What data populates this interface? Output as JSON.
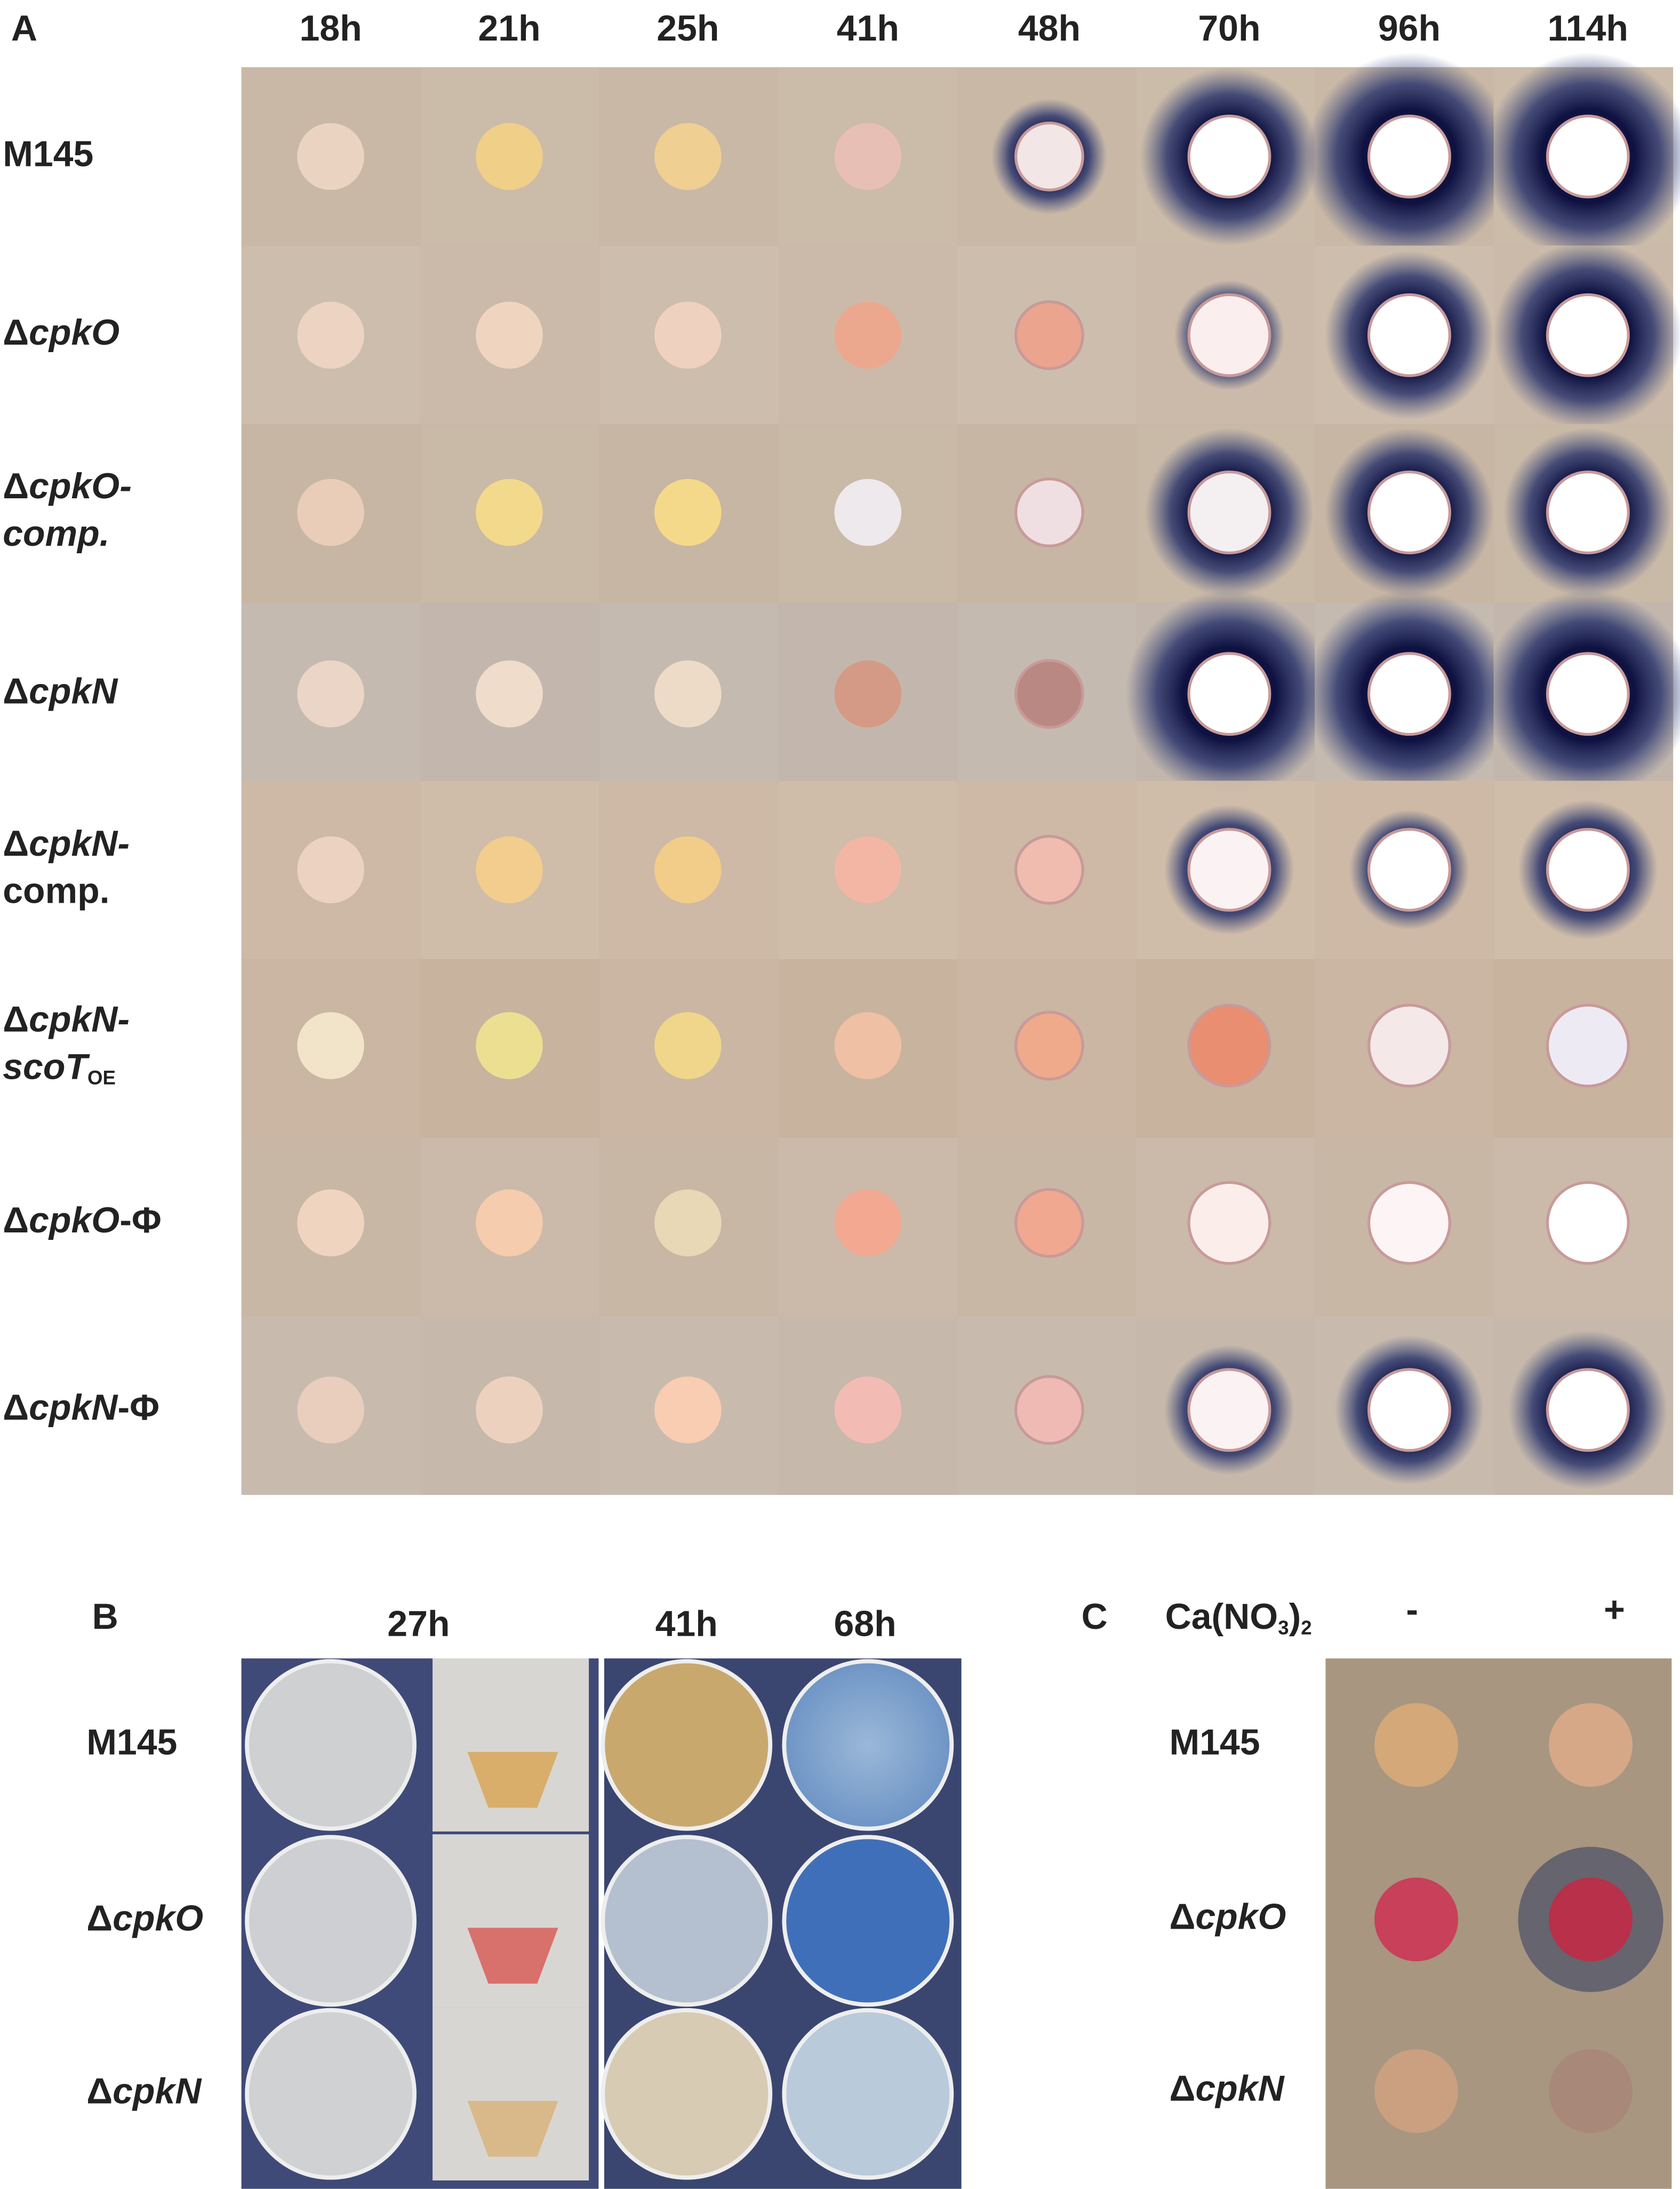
{
  "panel_a": {
    "label": "A",
    "columns": [
      "18h",
      "21h",
      "25h",
      "41h",
      "48h",
      "70h",
      "96h",
      "114h"
    ],
    "rows": [
      {
        "lines": [
          [
            {
              "text": "M145"
            }
          ]
        ]
      },
      {
        "lines": [
          [
            {
              "text": "Δ"
            },
            {
              "text": "cpkO",
              "italic": true
            }
          ]
        ]
      },
      {
        "lines": [
          [
            {
              "text": "Δ"
            },
            {
              "text": "cpkO-",
              "italic": true
            }
          ],
          [
            {
              "text": "comp.",
              "italic": true
            }
          ]
        ]
      },
      {
        "lines": [
          [
            {
              "text": "Δ"
            },
            {
              "text": "cpkN",
              "italic": true
            }
          ]
        ]
      },
      {
        "lines": [
          [
            {
              "text": "Δ"
            },
            {
              "text": "cpkN-",
              "italic": true
            }
          ],
          [
            {
              "text": "comp."
            }
          ]
        ]
      },
      {
        "lines": [
          [
            {
              "text": "Δ"
            },
            {
              "text": "cpkN-",
              "italic": true
            }
          ],
          [
            {
              "text": "scoT",
              "italic": true
            },
            {
              "text": "OE",
              "subscript": true
            }
          ]
        ]
      },
      {
        "lines": [
          [
            {
              "text": "Δ"
            },
            {
              "text": "cpkO",
              "italic": true
            },
            {
              "text": "-Φ"
            }
          ]
        ]
      },
      {
        "lines": [
          [
            {
              "text": "Δ"
            },
            {
              "text": "cpkN",
              "italic": true
            },
            {
              "text": "-Φ"
            }
          ]
        ]
      }
    ]
  },
  "panel_b": {
    "label": "B",
    "columns": [
      "27h",
      "41h",
      "68h"
    ],
    "rows": [
      {
        "lines": [
          [
            {
              "text": "M145"
            }
          ]
        ]
      },
      {
        "lines": [
          [
            {
              "text": "Δ"
            },
            {
              "text": "cpkO",
              "italic": true
            }
          ]
        ]
      },
      {
        "lines": [
          [
            {
              "text": "Δ"
            },
            {
              "text": "cpkN",
              "italic": true
            }
          ]
        ]
      }
    ]
  },
  "panel_c": {
    "label": "C",
    "condition": [
      {
        "text": "Ca(NO"
      },
      {
        "text": "3",
        "subscript": true
      },
      {
        "text": ")"
      },
      {
        "text": "2",
        "subscript": true
      }
    ],
    "columns": [
      "-",
      "+"
    ],
    "rows": [
      {
        "lines": [
          [
            {
              "text": "M145"
            }
          ]
        ]
      },
      {
        "lines": [
          [
            {
              "text": "Δ"
            },
            {
              "text": "cpkO",
              "italic": true
            }
          ]
        ]
      },
      {
        "lines": [
          [
            {
              "text": "Δ"
            },
            {
              "text": "cpkN",
              "italic": true
            }
          ]
        ]
      }
    ]
  }
}
